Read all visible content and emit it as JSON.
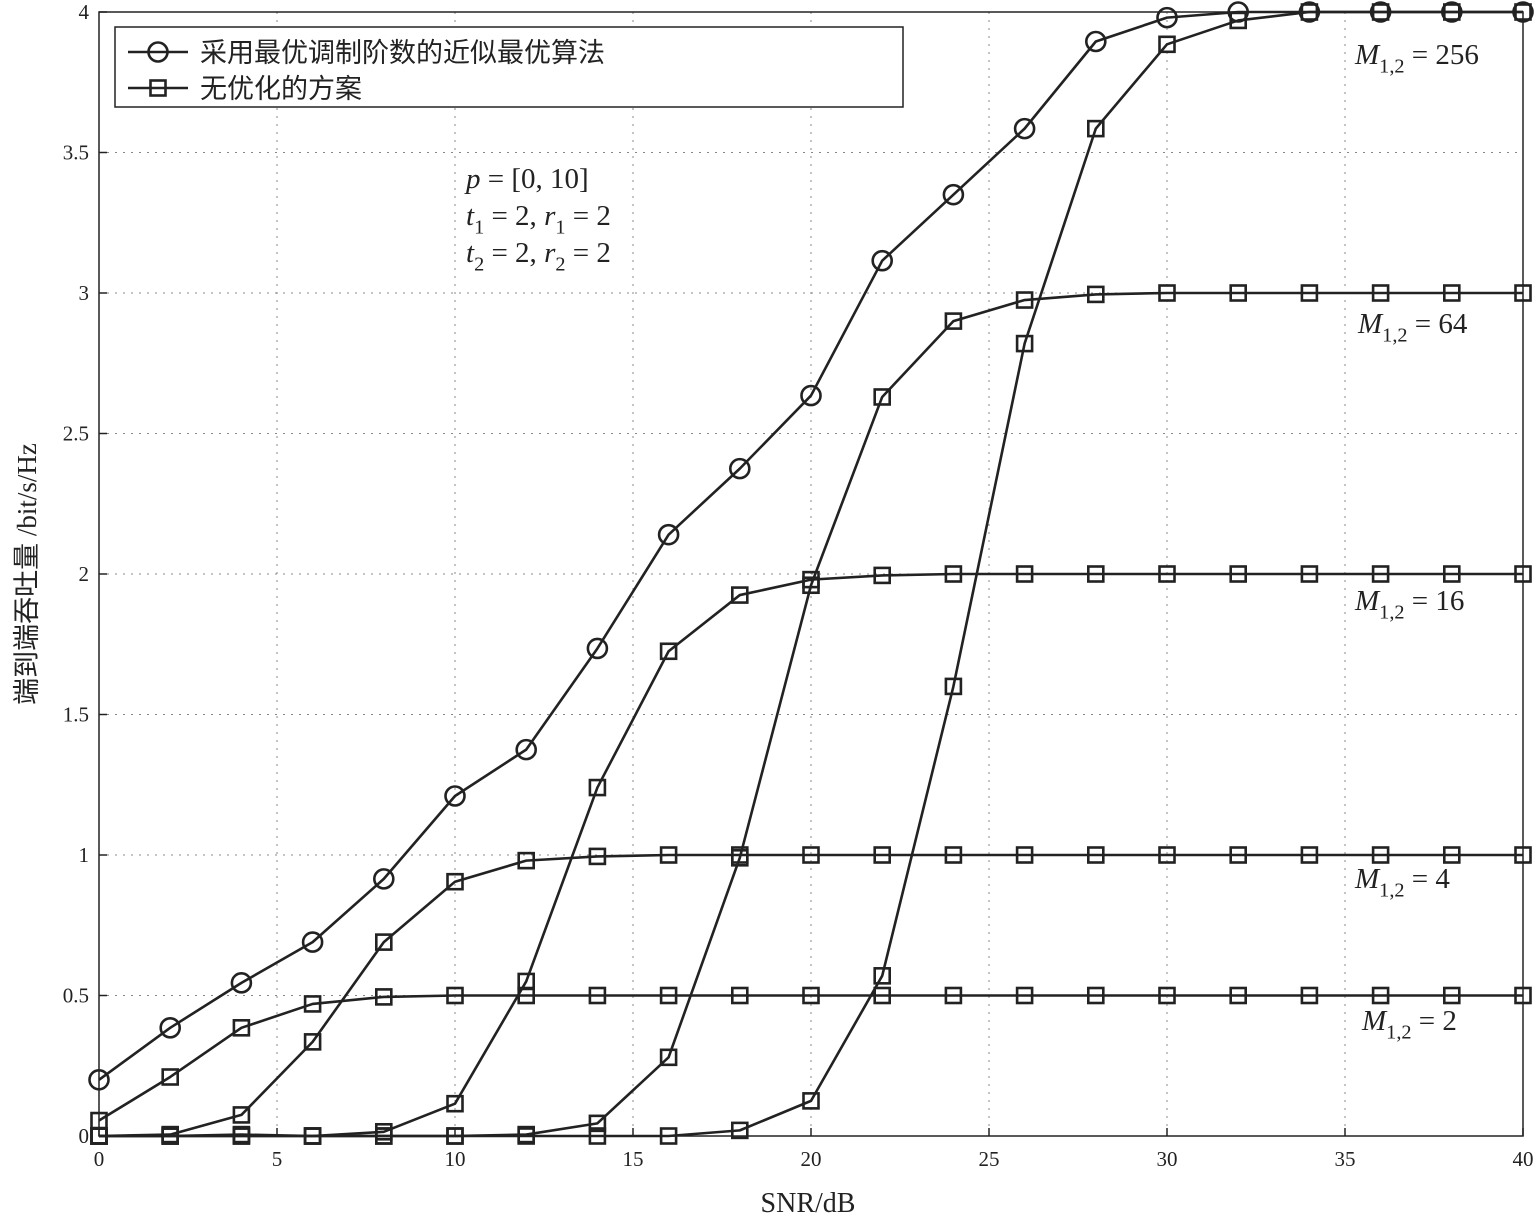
{
  "chart_data": {
    "type": "line",
    "xlabel": "SNR/dB",
    "ylabel": "端到端吞吐量 /bit/s/Hz",
    "x": [
      0,
      2,
      4,
      6,
      8,
      10,
      12,
      14,
      16,
      18,
      20,
      22,
      24,
      26,
      28,
      30,
      32,
      34,
      36,
      38,
      40
    ],
    "xlim": [
      0,
      40
    ],
    "xticks": [
      0,
      5,
      10,
      15,
      20,
      25,
      30,
      35,
      40
    ],
    "ylim": [
      0,
      4
    ],
    "yticks": [
      0,
      0.5,
      1,
      1.5,
      2,
      2.5,
      3,
      3.5,
      4
    ],
    "grid": true,
    "legend": "upper left",
    "series": [
      {
        "name": "采用最优调制阶数的近似最优算法",
        "marker": "circle",
        "color": "#222222",
        "values": [
          0.2,
          0.385,
          0.545,
          0.69,
          0.915,
          1.21,
          1.375,
          1.735,
          2.14,
          2.375,
          2.635,
          3.115,
          3.35,
          3.585,
          3.895,
          3.98,
          4.0,
          4.0,
          4.0,
          4.0,
          4.0
        ]
      },
      {
        "name": "无优化的方案",
        "marker": "square",
        "color": "#222222",
        "values": [
          0.055,
          0.21,
          0.385,
          0.47,
          0.495,
          0.5,
          0.5,
          0.5,
          0.5,
          0.5,
          0.5,
          0.5,
          0.5,
          0.5,
          0.5,
          0.5,
          0.5,
          0.5,
          0.5,
          0.5,
          0.5
        ]
      },
      {
        "marker": "square",
        "color": "#222222",
        "values": [
          0,
          0.005,
          0.075,
          0.335,
          0.69,
          0.905,
          0.98,
          0.995,
          1,
          1,
          1,
          1,
          1,
          1,
          1,
          1,
          1,
          1,
          1,
          1,
          1
        ]
      },
      {
        "marker": "square",
        "color": "#222222",
        "values": [
          0,
          0,
          0.005,
          0,
          0.015,
          0.115,
          0.55,
          1.24,
          1.725,
          1.925,
          1.98,
          1.995,
          2,
          2,
          2,
          2,
          2,
          2,
          2,
          2,
          2
        ]
      },
      {
        "marker": "square",
        "color": "#222222",
        "values": [
          0,
          0,
          0,
          0,
          0,
          0,
          0.005,
          0.045,
          0.28,
          0.99,
          1.96,
          2.63,
          2.9,
          2.975,
          2.995,
          3,
          3,
          3,
          3,
          3,
          3
        ]
      },
      {
        "marker": "square",
        "color": "#222222",
        "values": [
          0,
          0,
          0,
          0,
          0,
          0,
          0,
          0,
          0,
          0.02,
          0.125,
          0.57,
          1.6,
          2.82,
          3.585,
          3.885,
          3.97,
          4.0,
          4.0,
          4.0,
          4.0
        ]
      }
    ],
    "curve_labels": [
      [
        {
          "text": "M",
          "italic": true
        },
        {
          "text": "1,2",
          "sub": true
        },
        {
          "text": " = 256"
        }
      ],
      [
        {
          "text": "M",
          "italic": true
        },
        {
          "text": "1,2",
          "sub": true
        },
        {
          "text": " = 64"
        }
      ],
      [
        {
          "text": "M",
          "italic": true
        },
        {
          "text": "1,2",
          "sub": true
        },
        {
          "text": " = 16"
        }
      ],
      [
        {
          "text": "M",
          "italic": true
        },
        {
          "text": "1,2",
          "sub": true
        },
        {
          "text": " = 4"
        }
      ],
      [
        {
          "text": "M",
          "italic": true
        },
        {
          "text": "1,2",
          "sub": true
        },
        {
          "text": " = 2"
        }
      ]
    ],
    "annotations": [
      [
        {
          "text": "p",
          "italic": true
        },
        {
          "text": " = [0, 10]"
        }
      ],
      [
        {
          "text": "t",
          "italic": true
        },
        {
          "text": "1",
          "sub": true
        },
        {
          "text": " = 2, "
        },
        {
          "text": "r",
          "italic": true
        },
        {
          "text": "1",
          "sub": true
        },
        {
          "text": " = 2"
        }
      ],
      [
        {
          "text": "t",
          "italic": true
        },
        {
          "text": "2",
          "sub": true
        },
        {
          "text": " = 2, "
        },
        {
          "text": "r",
          "italic": true
        },
        {
          "text": "2",
          "sub": true
        },
        {
          "text": " = 2"
        }
      ]
    ]
  }
}
